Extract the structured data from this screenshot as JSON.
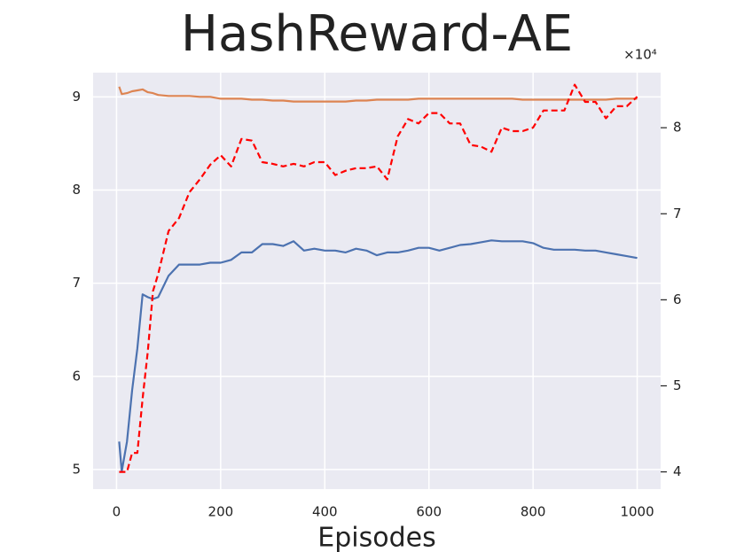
{
  "chart_data": {
    "type": "line",
    "title": "HashReward-AE",
    "x_label": "Episodes",
    "y2_offset_label": "×10⁴",
    "x": [
      5,
      10,
      20,
      30,
      40,
      50,
      60,
      70,
      80,
      100,
      120,
      140,
      160,
      180,
      200,
      220,
      240,
      260,
      280,
      300,
      320,
      340,
      360,
      380,
      400,
      420,
      440,
      460,
      480,
      500,
      520,
      540,
      560,
      580,
      600,
      620,
      640,
      660,
      680,
      700,
      720,
      740,
      760,
      780,
      800,
      820,
      840,
      860,
      880,
      900,
      920,
      940,
      960,
      980,
      1000
    ],
    "series": [
      {
        "color": "#4c72b0",
        "dash": false,
        "values": [
          5.3,
          4.98,
          5.3,
          5.85,
          6.3,
          6.88,
          6.85,
          6.83,
          6.85,
          7.08,
          7.2,
          7.2,
          7.2,
          7.22,
          7.22,
          7.25,
          7.33,
          7.33,
          7.42,
          7.42,
          7.4,
          7.45,
          7.35,
          7.37,
          7.35,
          7.35,
          7.33,
          7.37,
          7.35,
          7.3,
          7.33,
          7.33,
          7.35,
          7.38,
          7.38,
          7.35,
          7.38,
          7.41,
          7.42,
          7.44,
          7.46,
          7.45,
          7.45,
          7.45,
          7.43,
          7.38,
          7.36,
          7.36,
          7.36,
          7.35,
          7.35,
          7.33,
          7.31,
          7.29,
          7.27
        ]
      },
      {
        "color": "#dd8452",
        "dash": false,
        "values": [
          9.11,
          9.03,
          9.04,
          9.06,
          9.07,
          9.08,
          9.05,
          9.04,
          9.02,
          9.01,
          9.01,
          9.01,
          9.0,
          9.0,
          8.98,
          8.98,
          8.98,
          8.97,
          8.97,
          8.96,
          8.96,
          8.95,
          8.95,
          8.95,
          8.95,
          8.95,
          8.95,
          8.96,
          8.96,
          8.97,
          8.97,
          8.97,
          8.97,
          8.98,
          8.98,
          8.98,
          8.98,
          8.98,
          8.98,
          8.98,
          8.98,
          8.98,
          8.98,
          8.97,
          8.97,
          8.97,
          8.97,
          8.97,
          8.97,
          8.97,
          8.97,
          8.97,
          8.98,
          8.98,
          8.98
        ]
      },
      {
        "color": "#ff0000",
        "dash": true,
        "axis": "y2",
        "values": [
          4.0,
          4.0,
          4.0,
          4.22,
          4.22,
          4.85,
          5.4,
          6.1,
          6.3,
          6.8,
          6.95,
          7.25,
          7.4,
          7.57,
          7.68,
          7.55,
          7.87,
          7.85,
          7.6,
          7.58,
          7.55,
          7.58,
          7.55,
          7.6,
          7.6,
          7.45,
          7.5,
          7.53,
          7.53,
          7.55,
          7.4,
          7.9,
          8.1,
          8.05,
          8.17,
          8.17,
          8.05,
          8.05,
          7.8,
          7.78,
          7.72,
          8.0,
          7.96,
          7.96,
          8.0,
          8.2,
          8.2,
          8.2,
          8.5,
          8.3,
          8.3,
          8.11,
          8.25,
          8.25,
          8.36
        ]
      }
    ],
    "xlim": [
      -45,
      1045
    ],
    "xticks": [
      0,
      200,
      400,
      600,
      800,
      1000
    ],
    "ylim": [
      4.79,
      9.26
    ],
    "yticks": [
      5,
      6,
      7,
      8,
      9
    ],
    "y2lim": [
      3.8,
      8.64
    ],
    "y2ticks": [
      4,
      5,
      6,
      7,
      8
    ],
    "grid": true,
    "background": "#eaeaf2"
  }
}
